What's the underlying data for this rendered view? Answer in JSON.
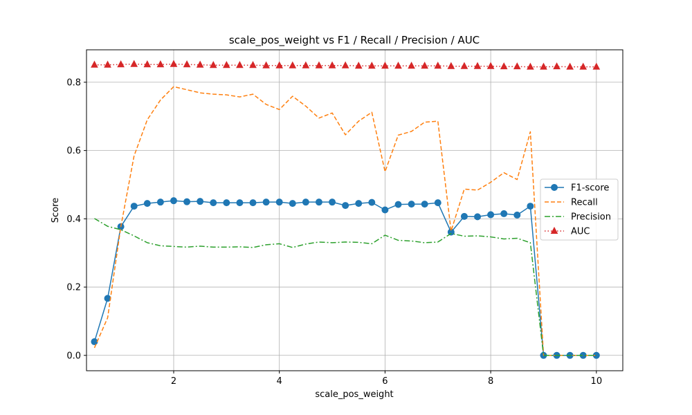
{
  "chart_data": {
    "type": "line",
    "title": "scale_pos_weight vs F1 / Recall / Precision / AUC",
    "xlabel": "scale_pos_weight",
    "ylabel": "Score",
    "xlim": [
      0.35,
      10.5
    ],
    "ylim": [
      -0.045,
      0.895
    ],
    "xticks": [
      2,
      4,
      6,
      8,
      10
    ],
    "yticks": [
      0.0,
      0.2,
      0.4,
      0.6,
      0.8
    ],
    "xtick_labels": [
      "2",
      "4",
      "6",
      "8",
      "10"
    ],
    "ytick_labels": [
      "0.0",
      "0.2",
      "0.4",
      "0.6",
      "0.8"
    ],
    "grid": true,
    "legend_position": "center-right",
    "x": [
      0.5,
      0.75,
      1.0,
      1.25,
      1.5,
      1.75,
      2.0,
      2.25,
      2.5,
      2.75,
      3.0,
      3.25,
      3.5,
      3.75,
      4.0,
      4.25,
      4.5,
      4.75,
      5.0,
      5.25,
      5.5,
      5.75,
      6.0,
      6.25,
      6.5,
      6.75,
      7.0,
      7.25,
      7.5,
      7.75,
      8.0,
      8.25,
      8.5,
      8.75,
      9.0,
      9.25,
      9.5,
      9.75,
      10.0
    ],
    "series": [
      {
        "name": "F1-score",
        "color": "#1f77b4",
        "style": "solid",
        "marker": "circle",
        "values": [
          0.04,
          0.167,
          0.377,
          0.437,
          0.445,
          0.449,
          0.453,
          0.45,
          0.451,
          0.447,
          0.447,
          0.447,
          0.447,
          0.449,
          0.449,
          0.445,
          0.449,
          0.449,
          0.449,
          0.439,
          0.445,
          0.448,
          0.426,
          0.442,
          0.443,
          0.443,
          0.447,
          0.361,
          0.407,
          0.406,
          0.412,
          0.415,
          0.411,
          0.437,
          0.0,
          0.0,
          0.0,
          0.0,
          0.0
        ]
      },
      {
        "name": "Recall",
        "color": "#ff7f0e",
        "style": "dashed",
        "marker": "none",
        "values": [
          0.022,
          0.11,
          0.377,
          0.584,
          0.69,
          0.748,
          0.787,
          0.778,
          0.769,
          0.765,
          0.763,
          0.757,
          0.765,
          0.735,
          0.72,
          0.759,
          0.73,
          0.695,
          0.71,
          0.646,
          0.686,
          0.712,
          0.538,
          0.645,
          0.656,
          0.683,
          0.686,
          0.364,
          0.487,
          0.484,
          0.507,
          0.535,
          0.515,
          0.655,
          0.0,
          0.0,
          0.0,
          0.0,
          0.0
        ]
      },
      {
        "name": "Precision",
        "color": "#2ca02c",
        "style": "dashdot",
        "marker": "none",
        "values": [
          0.401,
          0.378,
          0.368,
          0.35,
          0.33,
          0.321,
          0.319,
          0.317,
          0.32,
          0.317,
          0.317,
          0.318,
          0.316,
          0.324,
          0.327,
          0.316,
          0.326,
          0.332,
          0.33,
          0.332,
          0.331,
          0.327,
          0.352,
          0.337,
          0.335,
          0.33,
          0.332,
          0.357,
          0.349,
          0.35,
          0.347,
          0.341,
          0.343,
          0.33,
          0.0,
          0.0,
          0.0,
          0.0,
          0.0
        ]
      },
      {
        "name": "AUC",
        "color": "#d62728",
        "style": "dotted",
        "marker": "triangle",
        "values": [
          0.851,
          0.851,
          0.852,
          0.853,
          0.852,
          0.852,
          0.853,
          0.852,
          0.851,
          0.85,
          0.85,
          0.85,
          0.85,
          0.849,
          0.849,
          0.849,
          0.849,
          0.849,
          0.849,
          0.849,
          0.848,
          0.848,
          0.848,
          0.848,
          0.848,
          0.848,
          0.848,
          0.847,
          0.847,
          0.847,
          0.847,
          0.846,
          0.846,
          0.845,
          0.845,
          0.846,
          0.845,
          0.845,
          0.845
        ]
      }
    ]
  }
}
